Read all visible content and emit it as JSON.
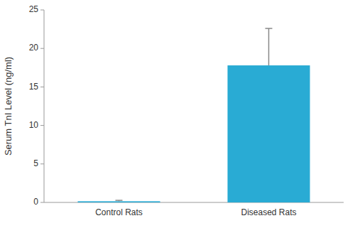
{
  "chart_data": {
    "type": "bar",
    "categories": [
      "Control Rats",
      "Diseased Rats"
    ],
    "values": [
      0.15,
      17.8
    ],
    "error_upper": [
      0.12,
      4.8
    ],
    "error_lower": [
      0,
      0
    ],
    "color": "#29ABD4",
    "ylabel": "Serum TnI Level (ng/ml)",
    "ylim": [
      0,
      25
    ],
    "yticks": [
      0,
      5,
      10,
      15,
      20,
      25
    ],
    "grid": false
  }
}
